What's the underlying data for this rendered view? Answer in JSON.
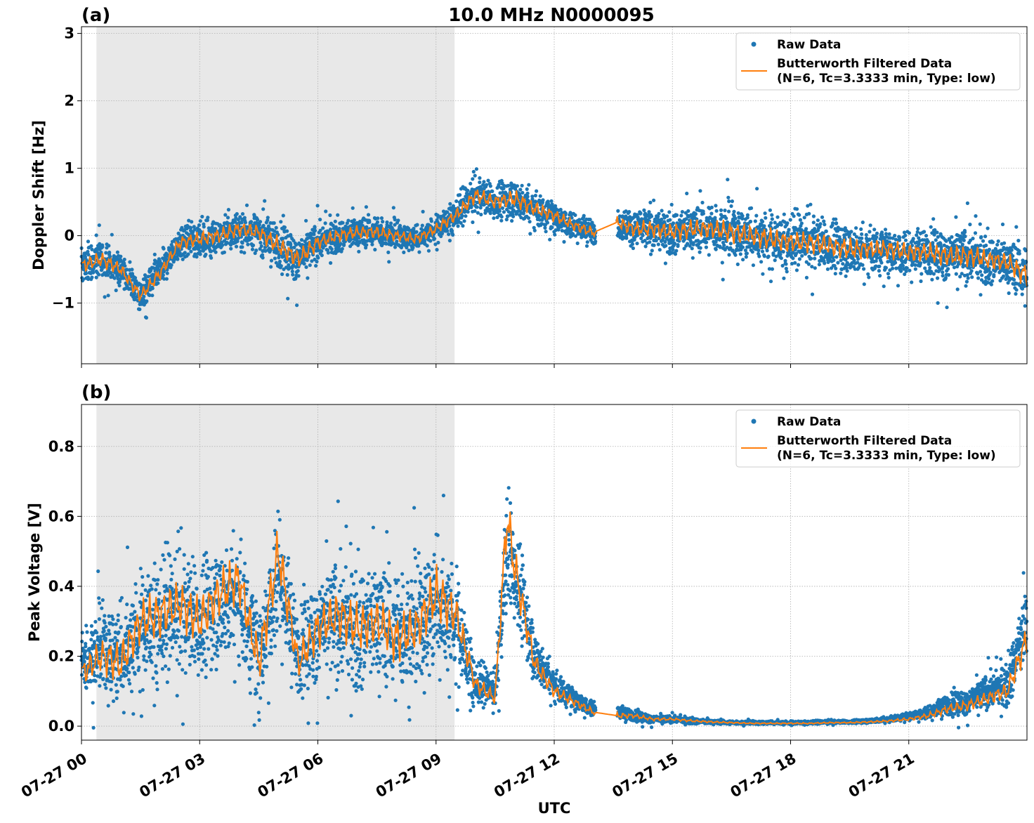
{
  "figure_title": "10.0 MHz N0000095",
  "xlabel": "UTC",
  "colors": {
    "raw": "#1f77b4",
    "filtered": "#ff7f0e",
    "shade": "#e8e8e8",
    "grid": "#b0b0b0"
  },
  "legend": {
    "raw_label": "Raw Data",
    "filtered_label_line1": "Butterworth Filtered Data",
    "filtered_label_line2": "(N=6, Tc=3.3333 min, Type: low)"
  },
  "chart_data": [
    {
      "type": "scatter",
      "panel_label": "(a)",
      "title": "10.0 MHz N0000095",
      "ylabel": "Doppler Shift [Hz]",
      "xlabel": "UTC",
      "xlim_hours": [
        0,
        24
      ],
      "ylim": [
        -1.9,
        3.1
      ],
      "yticks": [
        -1,
        0,
        1,
        2,
        3
      ],
      "ytick_labels": [
        "−1",
        "0",
        "1",
        "2",
        "3"
      ],
      "xticks_hours": [
        0,
        3,
        6,
        9,
        12,
        15,
        18,
        21
      ],
      "shaded_span_hours": [
        0.38,
        9.47
      ],
      "data_gap_hours": [
        13.05,
        13.6
      ],
      "grid": true,
      "legend_position": "top-right",
      "series": [
        {
          "name": "Raw Data",
          "style": "points",
          "x_hours": [
            0,
            0.5,
            1,
            1.5,
            2,
            2.5,
            3,
            3.5,
            4,
            4.5,
            5,
            5.5,
            6,
            6.5,
            7,
            7.5,
            8,
            8.5,
            9,
            9.5,
            10,
            10.5,
            11,
            11.5,
            12,
            12.5,
            13,
            13.6,
            14,
            14.5,
            15,
            15.5,
            16,
            16.5,
            17,
            17.5,
            18,
            18.5,
            19,
            19.5,
            20,
            20.5,
            21,
            21.5,
            22,
            22.5,
            23,
            23.5,
            24
          ],
          "center": [
            -0.45,
            -0.35,
            -0.5,
            -0.9,
            -0.55,
            -0.1,
            -0.05,
            0.0,
            0.1,
            0.05,
            -0.15,
            -0.35,
            -0.1,
            0.0,
            0.05,
            0.05,
            0.0,
            -0.05,
            0.1,
            0.3,
            0.6,
            0.5,
            0.55,
            0.4,
            0.3,
            0.15,
            0.05,
            0.2,
            0.1,
            0.1,
            0.05,
            0.1,
            0.1,
            0.05,
            0.0,
            -0.05,
            -0.1,
            -0.1,
            -0.15,
            -0.2,
            -0.2,
            -0.2,
            -0.25,
            -0.25,
            -0.3,
            -0.3,
            -0.35,
            -0.4,
            -0.6
          ],
          "spread": [
            0.35,
            0.35,
            0.3,
            0.3,
            0.3,
            0.3,
            0.35,
            0.35,
            0.35,
            0.35,
            0.45,
            0.45,
            0.35,
            0.3,
            0.3,
            0.3,
            0.25,
            0.25,
            0.25,
            0.3,
            0.35,
            0.35,
            0.4,
            0.35,
            0.3,
            0.25,
            0.25,
            0.3,
            0.35,
            0.4,
            0.4,
            0.45,
            0.45,
            0.5,
            0.5,
            0.5,
            0.5,
            0.5,
            0.5,
            0.5,
            0.45,
            0.45,
            0.45,
            0.45,
            0.5,
            0.5,
            0.45,
            0.45,
            0.55
          ]
        },
        {
          "name": "Butterworth Filtered Data\n(N=6, Tc=3.3333 min, Type: low)",
          "style": "line",
          "x_hours": [
            0,
            0.5,
            1,
            1.5,
            2,
            2.5,
            3,
            3.5,
            4,
            4.5,
            5,
            5.5,
            6,
            6.5,
            7,
            7.5,
            8,
            8.5,
            9,
            9.5,
            10,
            10.5,
            11,
            11.5,
            12,
            12.5,
            13,
            13.6,
            14,
            14.5,
            15,
            15.5,
            16,
            16.5,
            17,
            17.5,
            18,
            18.5,
            19,
            19.5,
            20,
            20.5,
            21,
            21.5,
            22,
            22.5,
            23,
            23.5,
            24
          ],
          "values": [
            -0.45,
            -0.35,
            -0.5,
            -0.9,
            -0.55,
            -0.1,
            -0.05,
            0.0,
            0.1,
            0.05,
            -0.15,
            -0.35,
            -0.1,
            0.0,
            0.05,
            0.05,
            0.0,
            -0.05,
            0.1,
            0.3,
            0.6,
            0.5,
            0.55,
            0.4,
            0.3,
            0.15,
            0.05,
            0.2,
            0.1,
            0.1,
            0.05,
            0.1,
            0.1,
            0.05,
            0.0,
            -0.05,
            -0.1,
            -0.1,
            -0.15,
            -0.2,
            -0.2,
            -0.2,
            -0.25,
            -0.25,
            -0.3,
            -0.3,
            -0.35,
            -0.4,
            -0.6
          ]
        }
      ]
    },
    {
      "type": "scatter",
      "panel_label": "(b)",
      "ylabel": "Peak Voltage [V]",
      "xlabel": "UTC",
      "xlim_hours": [
        0,
        24
      ],
      "ylim": [
        -0.04,
        0.92
      ],
      "yticks": [
        0.0,
        0.2,
        0.4,
        0.6,
        0.8
      ],
      "ytick_labels": [
        "0.0",
        "0.2",
        "0.4",
        "0.6",
        "0.8"
      ],
      "xticks_hours": [
        0,
        3,
        6,
        9,
        12,
        15,
        18,
        21
      ],
      "xtick_labels": [
        "07-27 00",
        "07-27 03",
        "07-27 06",
        "07-27 09",
        "07-27 12",
        "07-27 15",
        "07-27 18",
        "07-27 21"
      ],
      "shaded_span_hours": [
        0.38,
        9.47
      ],
      "data_gap_hours": [
        13.05,
        13.6
      ],
      "grid": true,
      "legend_position": "top-right",
      "series": [
        {
          "name": "Raw Data",
          "style": "points",
          "x_hours": [
            0,
            0.5,
            1,
            1.5,
            2,
            2.5,
            3,
            3.5,
            4,
            4.5,
            5,
            5.5,
            6,
            6.5,
            7,
            7.5,
            8,
            8.5,
            9,
            9.5,
            10,
            10.5,
            10.8,
            11,
            11.5,
            12,
            12.5,
            13,
            13.6,
            14,
            14.5,
            15,
            15.5,
            16,
            16.5,
            17,
            17.5,
            18,
            18.5,
            19,
            19.5,
            20,
            20.5,
            21,
            21.5,
            22,
            22.5,
            23,
            23.5,
            24
          ],
          "center": [
            0.18,
            0.22,
            0.2,
            0.28,
            0.3,
            0.32,
            0.3,
            0.35,
            0.38,
            0.2,
            0.45,
            0.2,
            0.28,
            0.3,
            0.28,
            0.3,
            0.26,
            0.28,
            0.35,
            0.3,
            0.12,
            0.1,
            0.5,
            0.45,
            0.2,
            0.12,
            0.08,
            0.05,
            0.04,
            0.03,
            0.02,
            0.02,
            0.015,
            0.012,
            0.01,
            0.01,
            0.01,
            0.01,
            0.01,
            0.012,
            0.012,
            0.015,
            0.02,
            0.03,
            0.04,
            0.06,
            0.07,
            0.1,
            0.12,
            0.3
          ],
          "spread": [
            0.12,
            0.15,
            0.2,
            0.2,
            0.22,
            0.22,
            0.22,
            0.22,
            0.22,
            0.2,
            0.25,
            0.15,
            0.2,
            0.22,
            0.22,
            0.22,
            0.22,
            0.22,
            0.25,
            0.2,
            0.08,
            0.06,
            0.25,
            0.2,
            0.1,
            0.06,
            0.04,
            0.03,
            0.03,
            0.02,
            0.015,
            0.012,
            0.01,
            0.008,
            0.006,
            0.006,
            0.006,
            0.006,
            0.006,
            0.006,
            0.006,
            0.008,
            0.01,
            0.015,
            0.025,
            0.04,
            0.05,
            0.06,
            0.08,
            0.15
          ]
        },
        {
          "name": "Butterworth Filtered Data\n(N=6, Tc=3.3333 min, Type: low)",
          "style": "line",
          "x_hours": [
            0,
            0.5,
            1,
            1.5,
            2,
            2.5,
            3,
            3.5,
            4,
            4.5,
            5,
            5.5,
            6,
            6.5,
            7,
            7.5,
            8,
            8.5,
            9,
            9.5,
            10,
            10.5,
            10.8,
            11,
            11.5,
            12,
            12.5,
            13,
            13.6,
            14,
            14.5,
            15,
            15.5,
            16,
            16.5,
            17,
            17.5,
            18,
            18.5,
            19,
            19.5,
            20,
            20.5,
            21,
            21.5,
            22,
            22.5,
            23,
            23.5,
            24
          ],
          "values": [
            0.15,
            0.2,
            0.18,
            0.3,
            0.32,
            0.35,
            0.3,
            0.38,
            0.42,
            0.18,
            0.5,
            0.18,
            0.28,
            0.32,
            0.28,
            0.3,
            0.25,
            0.28,
            0.38,
            0.32,
            0.12,
            0.08,
            0.6,
            0.45,
            0.18,
            0.1,
            0.07,
            0.04,
            0.03,
            0.03,
            0.02,
            0.02,
            0.015,
            0.012,
            0.01,
            0.008,
            0.008,
            0.008,
            0.008,
            0.01,
            0.01,
            0.012,
            0.015,
            0.02,
            0.03,
            0.05,
            0.06,
            0.08,
            0.1,
            0.25
          ]
        }
      ]
    }
  ]
}
